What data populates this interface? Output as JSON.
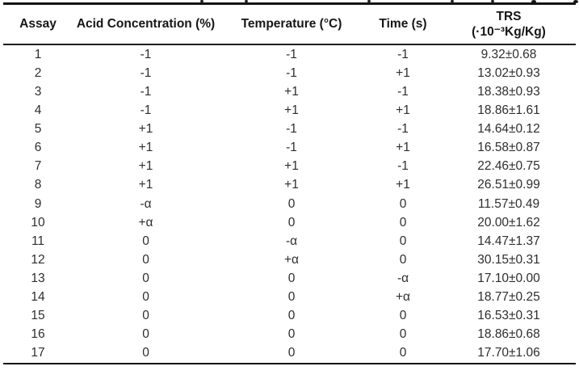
{
  "table": {
    "columns": [
      {
        "key": "assay",
        "label": "Assay"
      },
      {
        "key": "acid",
        "label": "Acid Concentration (%)"
      },
      {
        "key": "temp",
        "label": "Temperature (°C)"
      },
      {
        "key": "time",
        "label": "Time (s)"
      },
      {
        "key": "trs",
        "label_line1": "TRS",
        "label_line2": "(·10⁻³Kg/Kg)"
      }
    ],
    "rows": [
      [
        "1",
        "-1",
        "-1",
        "-1",
        "9.32±0.68"
      ],
      [
        "2",
        "-1",
        "-1",
        "+1",
        "13.02±0.93"
      ],
      [
        "3",
        "-1",
        "+1",
        "-1",
        "18.38±0.93"
      ],
      [
        "4",
        "-1",
        "+1",
        "+1",
        "18.86±1.61"
      ],
      [
        "5",
        "+1",
        "-1",
        "-1",
        "14.64±0.12"
      ],
      [
        "6",
        "+1",
        "-1",
        "+1",
        "16.58±0.87"
      ],
      [
        "7",
        "+1",
        "+1",
        "-1",
        "22.46±0.75"
      ],
      [
        "8",
        "+1",
        "+1",
        "+1",
        "26.51±0.99"
      ],
      [
        "9",
        "-α",
        "0",
        "0",
        "11.57±0.49"
      ],
      [
        "10",
        "+α",
        "0",
        "0",
        "20.00±1.62"
      ],
      [
        "11",
        "0",
        "-α",
        "0",
        "14.47±1.37"
      ],
      [
        "12",
        "0",
        "+α",
        "0",
        "30.15±0.31"
      ],
      [
        "13",
        "0",
        "0",
        "-α",
        "17.10±0.00"
      ],
      [
        "14",
        "0",
        "0",
        "+α",
        "18.77±0.25"
      ],
      [
        "15",
        "0",
        "0",
        "0",
        "16.53±0.31"
      ],
      [
        "16",
        "0",
        "0",
        "0",
        "18.86±0.68"
      ],
      [
        "17",
        "0",
        "0",
        "0",
        "17.70±1.06"
      ]
    ]
  },
  "caption_fragment": {
    "cropped": true,
    "descender_marks_x": [
      248,
      303,
      455,
      558,
      608,
      658,
      710
    ]
  },
  "colors": {
    "background": "#ffffff",
    "rule": "#121212",
    "header_text": "#161616",
    "body_text": "#2e2e2e"
  }
}
